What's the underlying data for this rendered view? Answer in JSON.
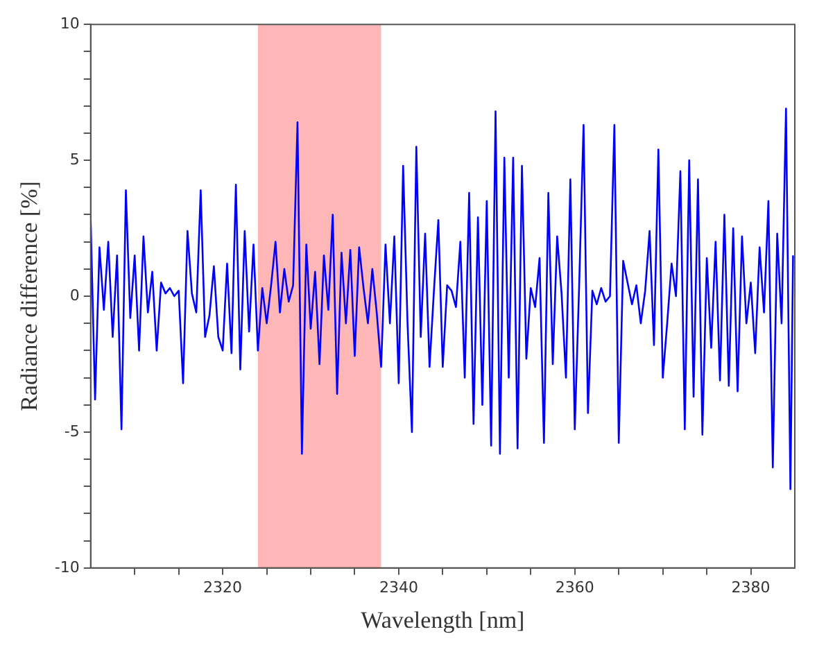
{
  "chart_data": {
    "type": "line",
    "xlabel": "Wavelength [nm]",
    "ylabel": "Radiance difference [%]",
    "xlim": [
      2305,
      2385
    ],
    "ylim": [
      -10,
      10
    ],
    "xticks": [
      {
        "value": 2310,
        "label": null
      },
      {
        "value": 2315,
        "label": null
      },
      2320,
      {
        "value": 2325,
        "label": null
      },
      {
        "value": 2330,
        "label": null
      },
      {
        "value": 2335,
        "label": null
      },
      2340,
      {
        "value": 2345,
        "label": null
      },
      {
        "value": 2350,
        "label": null
      },
      {
        "value": 2355,
        "label": null
      },
      2360,
      {
        "value": 2365,
        "label": null
      },
      {
        "value": 2370,
        "label": null
      },
      {
        "value": 2375,
        "label": null
      },
      2380
    ],
    "yticks": [
      -10,
      {
        "value": -9,
        "label": null
      },
      {
        "value": -8,
        "label": null
      },
      {
        "value": -7,
        "label": null
      },
      {
        "value": -6,
        "label": null
      },
      -5,
      {
        "value": -4,
        "label": null
      },
      {
        "value": -3,
        "label": null
      },
      {
        "value": -2,
        "label": null
      },
      {
        "value": -1,
        "label": null
      },
      0,
      {
        "value": 1,
        "label": null
      },
      {
        "value": 2,
        "label": null
      },
      {
        "value": 3,
        "label": null
      },
      {
        "value": 4,
        "label": null
      },
      5,
      {
        "value": 6,
        "label": null
      },
      {
        "value": 7,
        "label": null
      },
      {
        "value": 8,
        "label": null
      },
      {
        "value": 9,
        "label": null
      },
      10
    ],
    "grid": false,
    "legend": false,
    "marker": "none",
    "line_style": "solid",
    "bands": [
      {
        "axis": "x",
        "from": 2324,
        "to": 2338,
        "color": "#ffb6b6"
      }
    ],
    "series": [
      {
        "color": "#0000ff",
        "x": [
          2305,
          2305.5,
          2306,
          2306.5,
          2307,
          2307.5,
          2308,
          2308.5,
          2309,
          2309.5,
          2310,
          2310.5,
          2311,
          2311.5,
          2312,
          2312.5,
          2313,
          2313.5,
          2314,
          2314.5,
          2315,
          2315.5,
          2316,
          2316.5,
          2317,
          2317.5,
          2318,
          2318.5,
          2319,
          2319.5,
          2320,
          2320.5,
          2321,
          2321.5,
          2322,
          2322.5,
          2323,
          2323.5,
          2324,
          2324.5,
          2325,
          2325.5,
          2326,
          2326.5,
          2327,
          2327.5,
          2328,
          2328.5,
          2329,
          2329.5,
          2330,
          2330.5,
          2331,
          2331.5,
          2332,
          2332.5,
          2333,
          2333.5,
          2334,
          2334.5,
          2335,
          2335.5,
          2336,
          2336.5,
          2337,
          2337.5,
          2338,
          2338.5,
          2339,
          2339.5,
          2340,
          2340.5,
          2341,
          2341.5,
          2342,
          2342.5,
          2343,
          2343.5,
          2344,
          2344.5,
          2345,
          2345.5,
          2346,
          2346.5,
          2347,
          2347.5,
          2348,
          2348.5,
          2349,
          2349.5,
          2350,
          2350.5,
          2351,
          2351.5,
          2352,
          2352.5,
          2353,
          2353.5,
          2354,
          2354.5,
          2355,
          2355.5,
          2356,
          2356.5,
          2357,
          2357.5,
          2358,
          2358.5,
          2359,
          2359.5,
          2360,
          2360.5,
          2361,
          2361.5,
          2362,
          2362.5,
          2363,
          2363.5,
          2364,
          2364.5,
          2365,
          2365.5,
          2366,
          2366.5,
          2367,
          2367.5,
          2368,
          2368.5,
          2369,
          2369.5,
          2370,
          2370.5,
          2371,
          2371.5,
          2372,
          2372.5,
          2373,
          2373.5,
          2374,
          2374.5,
          2375,
          2375.5,
          2376,
          2376.5,
          2377,
          2377.5,
          2378,
          2378.5,
          2379,
          2379.5,
          2380,
          2380.5,
          2381,
          2381.5,
          2382,
          2382.5,
          2383,
          2383.5,
          2384,
          2384.5,
          2384.8
        ],
        "values": [
          2.8,
          -3.8,
          1.8,
          -0.5,
          2.0,
          -1.5,
          1.5,
          -4.9,
          3.9,
          -0.8,
          1.5,
          -2.0,
          2.2,
          -0.6,
          0.9,
          -2.0,
          0.5,
          0.1,
          0.3,
          0.0,
          0.2,
          -3.2,
          2.4,
          0.1,
          -0.6,
          3.9,
          -1.5,
          -0.7,
          1.1,
          -1.5,
          -2.0,
          1.2,
          -2.1,
          4.1,
          -2.7,
          2.4,
          -1.3,
          1.9,
          -2.0,
          0.3,
          -1.0,
          0.4,
          2.0,
          -0.6,
          1.0,
          -0.2,
          0.4,
          6.4,
          -5.8,
          1.9,
          -1.2,
          0.9,
          -2.5,
          1.5,
          -0.5,
          3.0,
          -3.6,
          1.6,
          -1.0,
          1.7,
          -2.2,
          1.8,
          0.3,
          -1.0,
          1.0,
          -0.6,
          -2.6,
          1.9,
          -1.0,
          2.2,
          -3.2,
          4.8,
          -1.0,
          -5.0,
          5.5,
          -1.5,
          2.3,
          -2.6,
          0.2,
          2.8,
          -2.6,
          0.4,
          0.2,
          -0.4,
          2.0,
          -3.0,
          3.8,
          -4.7,
          2.9,
          -4.0,
          3.5,
          -5.5,
          6.8,
          -5.8,
          5.1,
          -3.0,
          5.1,
          -5.6,
          4.8,
          -2.3,
          0.3,
          -0.4,
          1.4,
          -5.4,
          3.8,
          -2.5,
          2.2,
          0.1,
          -3.0,
          4.3,
          -4.9,
          0.4,
          6.3,
          -4.3,
          0.2,
          -0.3,
          0.3,
          -0.2,
          0.0,
          6.3,
          -5.4,
          1.3,
          0.5,
          -0.3,
          0.4,
          -1.0,
          0.2,
          2.4,
          -1.8,
          5.4,
          -3.0,
          -1.0,
          1.2,
          0.0,
          4.6,
          -4.9,
          5.0,
          -3.7,
          4.3,
          -5.1,
          1.4,
          -1.9,
          2.0,
          -3.1,
          3.0,
          -3.3,
          2.5,
          -3.5,
          2.2,
          -1.0,
          0.5,
          -2.1,
          1.8,
          -0.6,
          3.5,
          -6.3,
          2.3,
          -1.0,
          6.9,
          -7.1,
          1.5
        ]
      }
    ]
  }
}
